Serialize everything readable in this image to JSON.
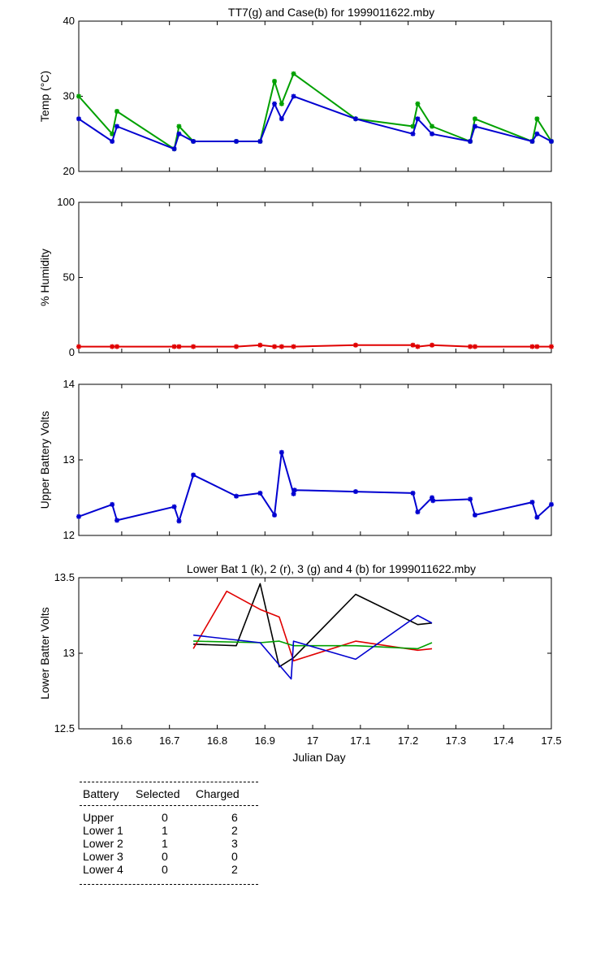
{
  "chart_data": [
    {
      "type": "line",
      "title": "TT7(g) and Case(b) for 1999011622.mby",
      "ylabel": "Temp  (°C)",
      "xlabel": "",
      "xlim": [
        16.51,
        17.5
      ],
      "ylim": [
        20,
        40
      ],
      "yticks": [
        "20",
        "30",
        "40"
      ],
      "grid": false,
      "series": [
        {
          "color": "#00a000",
          "marker": "asterisk",
          "x": [
            16.51,
            16.58,
            16.59,
            16.71,
            16.72,
            16.75,
            16.84,
            16.89,
            16.92,
            16.935,
            16.96,
            17.09,
            17.21,
            17.22,
            17.25,
            17.33,
            17.34,
            17.46,
            17.47,
            17.5
          ],
          "y": [
            30,
            25,
            28,
            23,
            26,
            24,
            24,
            24,
            32,
            29,
            33,
            27,
            26,
            29,
            26,
            24,
            27,
            24,
            27,
            24
          ]
        },
        {
          "color": "#0000d0",
          "marker": "asterisk",
          "x": [
            16.51,
            16.58,
            16.59,
            16.71,
            16.72,
            16.75,
            16.84,
            16.89,
            16.92,
            16.935,
            16.96,
            17.09,
            17.21,
            17.22,
            17.25,
            17.33,
            17.34,
            17.46,
            17.47,
            17.5
          ],
          "y": [
            27,
            24,
            26,
            23,
            25,
            24,
            24,
            24,
            29,
            27,
            30,
            27,
            25,
            27,
            25,
            24,
            26,
            24,
            25,
            24
          ]
        }
      ]
    },
    {
      "type": "line",
      "title": "",
      "ylabel": "% Humidity",
      "xlabel": "",
      "xlim": [
        16.51,
        17.5
      ],
      "ylim": [
        0,
        100
      ],
      "yticks": [
        "0",
        "50",
        "100"
      ],
      "grid": false,
      "series": [
        {
          "color": "#e00000",
          "marker": "asterisk",
          "x": [
            16.51,
            16.58,
            16.59,
            16.71,
            16.72,
            16.75,
            16.84,
            16.89,
            16.92,
            16.935,
            16.96,
            17.09,
            17.21,
            17.22,
            17.25,
            17.33,
            17.34,
            17.46,
            17.47,
            17.5
          ],
          "y": [
            4,
            4,
            4,
            4,
            4,
            4,
            4,
            5,
            4,
            4,
            4,
            5,
            5,
            4,
            5,
            4,
            4,
            4,
            4,
            4
          ]
        }
      ]
    },
    {
      "type": "line",
      "title": "",
      "ylabel": "Upper Battery Volts",
      "xlabel": "",
      "xlim": [
        16.51,
        17.5
      ],
      "ylim": [
        12,
        14
      ],
      "yticks": [
        "12",
        "13",
        "14"
      ],
      "grid": false,
      "series": [
        {
          "color": "#0000d0",
          "marker": "asterisk",
          "x": [
            16.51,
            16.58,
            16.59,
            16.71,
            16.72,
            16.75,
            16.84,
            16.89,
            16.92,
            16.935,
            16.96,
            16.962,
            17.09,
            17.21,
            17.22,
            17.25,
            17.252,
            17.33,
            17.34,
            17.46,
            17.47,
            17.5
          ],
          "y": [
            12.25,
            12.41,
            12.2,
            12.38,
            12.19,
            12.8,
            12.52,
            12.56,
            12.27,
            13.1,
            12.55,
            12.6,
            12.58,
            12.56,
            12.31,
            12.5,
            12.46,
            12.48,
            12.27,
            12.44,
            12.24,
            12.41
          ]
        }
      ]
    },
    {
      "type": "line",
      "title": "Lower Bat 1 (k), 2 (r), 3 (g) and 4 (b) for 1999011622.mby",
      "ylabel": "Lower Batter Volts",
      "xlabel": "Julian Day",
      "xlim": [
        16.51,
        17.5
      ],
      "ylim": [
        12.5,
        13.5
      ],
      "xticks": [
        "16.6",
        "16.7",
        "16.8",
        "16.9",
        "17",
        "17.1",
        "17.2",
        "17.3",
        "17.4",
        "17.5"
      ],
      "yticks": [
        "12.5",
        "13",
        "13.5"
      ],
      "grid": false,
      "series": [
        {
          "color": "#000000",
          "x": [
            16.75,
            16.84,
            16.89,
            16.93,
            16.96,
            17.09,
            17.22,
            17.25
          ],
          "y": [
            13.06,
            13.05,
            13.46,
            12.91,
            12.97,
            13.39,
            13.19,
            13.2
          ]
        },
        {
          "color": "#e00000",
          "x": [
            16.75,
            16.82,
            16.89,
            16.93,
            16.96,
            17.09,
            17.22,
            17.25
          ],
          "y": [
            13.03,
            13.41,
            13.29,
            13.24,
            12.95,
            13.08,
            13.02,
            13.03
          ]
        },
        {
          "color": "#00a000",
          "x": [
            16.75,
            16.89,
            16.93,
            16.96,
            17.09,
            17.22,
            17.25
          ],
          "y": [
            13.08,
            13.07,
            13.08,
            13.05,
            13.05,
            13.03,
            13.07
          ]
        },
        {
          "color": "#0000d0",
          "x": [
            16.75,
            16.89,
            16.955,
            16.96,
            17.09,
            17.22,
            17.25
          ],
          "y": [
            13.12,
            13.07,
            12.83,
            13.08,
            12.96,
            13.25,
            13.2
          ]
        }
      ]
    }
  ],
  "battery_table": {
    "headers": [
      "Battery",
      "Selected",
      "Charged"
    ],
    "rows": [
      {
        "battery": "Upper",
        "selected": "0",
        "charged": "6"
      },
      {
        "battery": "Lower 1",
        "selected": "1",
        "charged": "2"
      },
      {
        "battery": "Lower 2",
        "selected": "1",
        "charged": "3"
      },
      {
        "battery": "Lower 3",
        "selected": "0",
        "charged": "0"
      },
      {
        "battery": "Lower 4",
        "selected": "0",
        "charged": "2"
      }
    ]
  }
}
